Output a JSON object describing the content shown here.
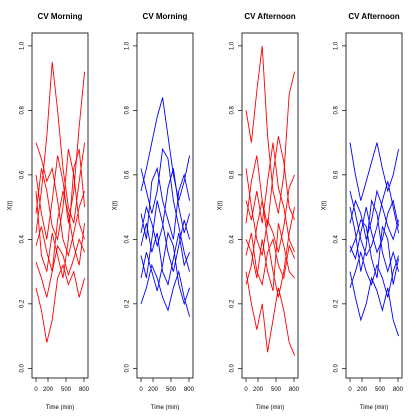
{
  "chart_data": [
    {
      "type": "line",
      "title": "CV  Morning",
      "x_label": "Time (min)",
      "y_label": "X(t)",
      "color": "#ff0000",
      "x": [
        0,
        90,
        180,
        270,
        360,
        450,
        540,
        630,
        720,
        810
      ],
      "xlim": [
        -67,
        867
      ],
      "xticks": [
        0,
        200,
        500,
        800
      ],
      "ylim": [
        -0.03,
        1.04
      ],
      "yticks": [
        {
          "value": 0,
          "label": "0.0"
        },
        0.2,
        0.4,
        0.6,
        0.8,
        {
          "value": 1,
          "label": "1.0"
        }
      ],
      "series": [
        {
          "values": [
            0.42,
            0.55,
            0.72,
            0.95,
            0.8,
            0.62,
            0.5,
            0.45,
            0.58,
            0.7
          ]
        },
        {
          "values": [
            0.33,
            0.28,
            0.22,
            0.3,
            0.38,
            0.35,
            0.29,
            0.34,
            0.4,
            0.36
          ]
        },
        {
          "values": [
            0.6,
            0.48,
            0.4,
            0.52,
            0.66,
            0.58,
            0.45,
            0.55,
            0.75,
            0.92
          ]
        },
        {
          "values": [
            0.25,
            0.18,
            0.08,
            0.15,
            0.28,
            0.32,
            0.26,
            0.3,
            0.22,
            0.28
          ]
        },
        {
          "values": [
            0.48,
            0.62,
            0.55,
            0.44,
            0.4,
            0.5,
            0.68,
            0.6,
            0.45,
            0.4
          ]
        },
        {
          "values": [
            0.7,
            0.65,
            0.58,
            0.62,
            0.52,
            0.4,
            0.35,
            0.42,
            0.5,
            0.55
          ]
        },
        {
          "values": [
            0.38,
            0.44,
            0.36,
            0.3,
            0.46,
            0.55,
            0.48,
            0.38,
            0.32,
            0.45
          ]
        },
        {
          "values": [
            0.55,
            0.35,
            0.3,
            0.42,
            0.35,
            0.28,
            0.4,
            0.62,
            0.68,
            0.5
          ]
        }
      ]
    },
    {
      "type": "line",
      "title": "CV Morning",
      "x_label": "Time (min)",
      "y_label": "X(t)",
      "color": "#0000ff",
      "x": [
        0,
        90,
        180,
        270,
        360,
        450,
        540,
        630,
        720,
        810
      ],
      "xlim": [
        -67,
        867
      ],
      "xticks": [
        0,
        200,
        500,
        800
      ],
      "ylim": [
        -0.03,
        1.04
      ],
      "yticks": [
        {
          "value": 0,
          "label": "0.0"
        },
        0.2,
        0.4,
        0.6,
        0.8,
        {
          "value": 1,
          "label": "1.0"
        }
      ],
      "series": [
        {
          "values": [
            0.55,
            0.62,
            0.7,
            0.78,
            0.84,
            0.72,
            0.6,
            0.52,
            0.58,
            0.66
          ]
        },
        {
          "values": [
            0.2,
            0.25,
            0.32,
            0.28,
            0.22,
            0.18,
            0.25,
            0.3,
            0.22,
            0.16
          ]
        },
        {
          "values": [
            0.42,
            0.5,
            0.45,
            0.38,
            0.44,
            0.56,
            0.62,
            0.5,
            0.42,
            0.48
          ]
        },
        {
          "values": [
            0.35,
            0.28,
            0.4,
            0.52,
            0.45,
            0.36,
            0.3,
            0.38,
            0.46,
            0.4
          ]
        },
        {
          "values": [
            0.62,
            0.55,
            0.48,
            0.55,
            0.68,
            0.65,
            0.52,
            0.44,
            0.36,
            0.3
          ]
        },
        {
          "values": [
            0.28,
            0.36,
            0.3,
            0.24,
            0.32,
            0.42,
            0.38,
            0.26,
            0.2,
            0.25
          ]
        },
        {
          "values": [
            0.48,
            0.4,
            0.58,
            0.62,
            0.52,
            0.46,
            0.4,
            0.55,
            0.6,
            0.52
          ]
        },
        {
          "values": [
            0.38,
            0.45,
            0.36,
            0.42,
            0.3,
            0.26,
            0.34,
            0.42,
            0.32,
            0.36
          ]
        }
      ]
    },
    {
      "type": "line",
      "title": "CV Afternoon",
      "x_label": "Time (min)",
      "y_label": "X(t)",
      "color": "#ff0000",
      "x": [
        0,
        90,
        180,
        270,
        360,
        450,
        540,
        630,
        720,
        810
      ],
      "xlim": [
        -67,
        867
      ],
      "xticks": [
        0,
        200,
        500,
        800
      ],
      "ylim": [
        -0.03,
        1.04
      ],
      "yticks": [
        {
          "value": 0,
          "label": "0.0"
        },
        0.2,
        0.4,
        0.6,
        0.8,
        {
          "value": 1,
          "label": "1.0"
        }
      ],
      "series": [
        {
          "values": [
            0.8,
            0.7,
            0.86,
            1.0,
            0.72,
            0.55,
            0.48,
            0.6,
            0.85,
            0.92
          ]
        },
        {
          "values": [
            0.3,
            0.2,
            0.12,
            0.2,
            0.05,
            0.15,
            0.25,
            0.18,
            0.08,
            0.04
          ]
        },
        {
          "values": [
            0.45,
            0.58,
            0.66,
            0.52,
            0.44,
            0.6,
            0.72,
            0.64,
            0.5,
            0.46
          ]
        },
        {
          "values": [
            0.62,
            0.5,
            0.4,
            0.35,
            0.46,
            0.42,
            0.36,
            0.44,
            0.56,
            0.6
          ]
        },
        {
          "values": [
            0.35,
            0.42,
            0.3,
            0.26,
            0.36,
            0.4,
            0.32,
            0.28,
            0.38,
            0.34
          ]
        },
        {
          "values": [
            0.26,
            0.32,
            0.44,
            0.52,
            0.4,
            0.3,
            0.22,
            0.3,
            0.42,
            0.5
          ]
        },
        {
          "values": [
            0.52,
            0.46,
            0.55,
            0.45,
            0.58,
            0.7,
            0.56,
            0.5,
            0.4,
            0.36
          ]
        },
        {
          "values": [
            0.4,
            0.36,
            0.28,
            0.4,
            0.3,
            0.24,
            0.45,
            0.38,
            0.3,
            0.28
          ]
        }
      ]
    },
    {
      "type": "line",
      "title": "CV Afternoon",
      "x_label": "Time (min)",
      "y_label": "X(t)",
      "color": "#0000ff",
      "x": [
        0,
        90,
        180,
        270,
        360,
        450,
        540,
        630,
        720,
        810
      ],
      "xlim": [
        -67,
        867
      ],
      "xticks": [
        0,
        200,
        500,
        800
      ],
      "ylim": [
        -0.03,
        1.04
      ],
      "yticks": [
        {
          "value": 0,
          "label": "0.0"
        },
        0.2,
        0.4,
        0.6,
        0.8,
        {
          "value": 1,
          "label": "1.0"
        }
      ],
      "series": [
        {
          "values": [
            0.7,
            0.6,
            0.52,
            0.58,
            0.64,
            0.7,
            0.62,
            0.55,
            0.6,
            0.68
          ]
        },
        {
          "values": [
            0.3,
            0.22,
            0.15,
            0.2,
            0.28,
            0.24,
            0.18,
            0.25,
            0.15,
            0.1
          ]
        },
        {
          "values": [
            0.45,
            0.52,
            0.48,
            0.4,
            0.46,
            0.55,
            0.5,
            0.44,
            0.4,
            0.46
          ]
        },
        {
          "values": [
            0.38,
            0.34,
            0.42,
            0.5,
            0.42,
            0.36,
            0.4,
            0.48,
            0.52,
            0.44
          ]
        },
        {
          "values": [
            0.55,
            0.48,
            0.4,
            0.35,
            0.38,
            0.44,
            0.52,
            0.58,
            0.5,
            0.42
          ]
        },
        {
          "values": [
            0.25,
            0.3,
            0.36,
            0.3,
            0.26,
            0.32,
            0.28,
            0.22,
            0.3,
            0.35
          ]
        },
        {
          "values": [
            0.5,
            0.42,
            0.3,
            0.38,
            0.52,
            0.48,
            0.36,
            0.3,
            0.36,
            0.3
          ]
        },
        {
          "values": [
            0.36,
            0.4,
            0.46,
            0.44,
            0.34,
            0.28,
            0.44,
            0.4,
            0.26,
            0.34
          ]
        }
      ]
    }
  ]
}
